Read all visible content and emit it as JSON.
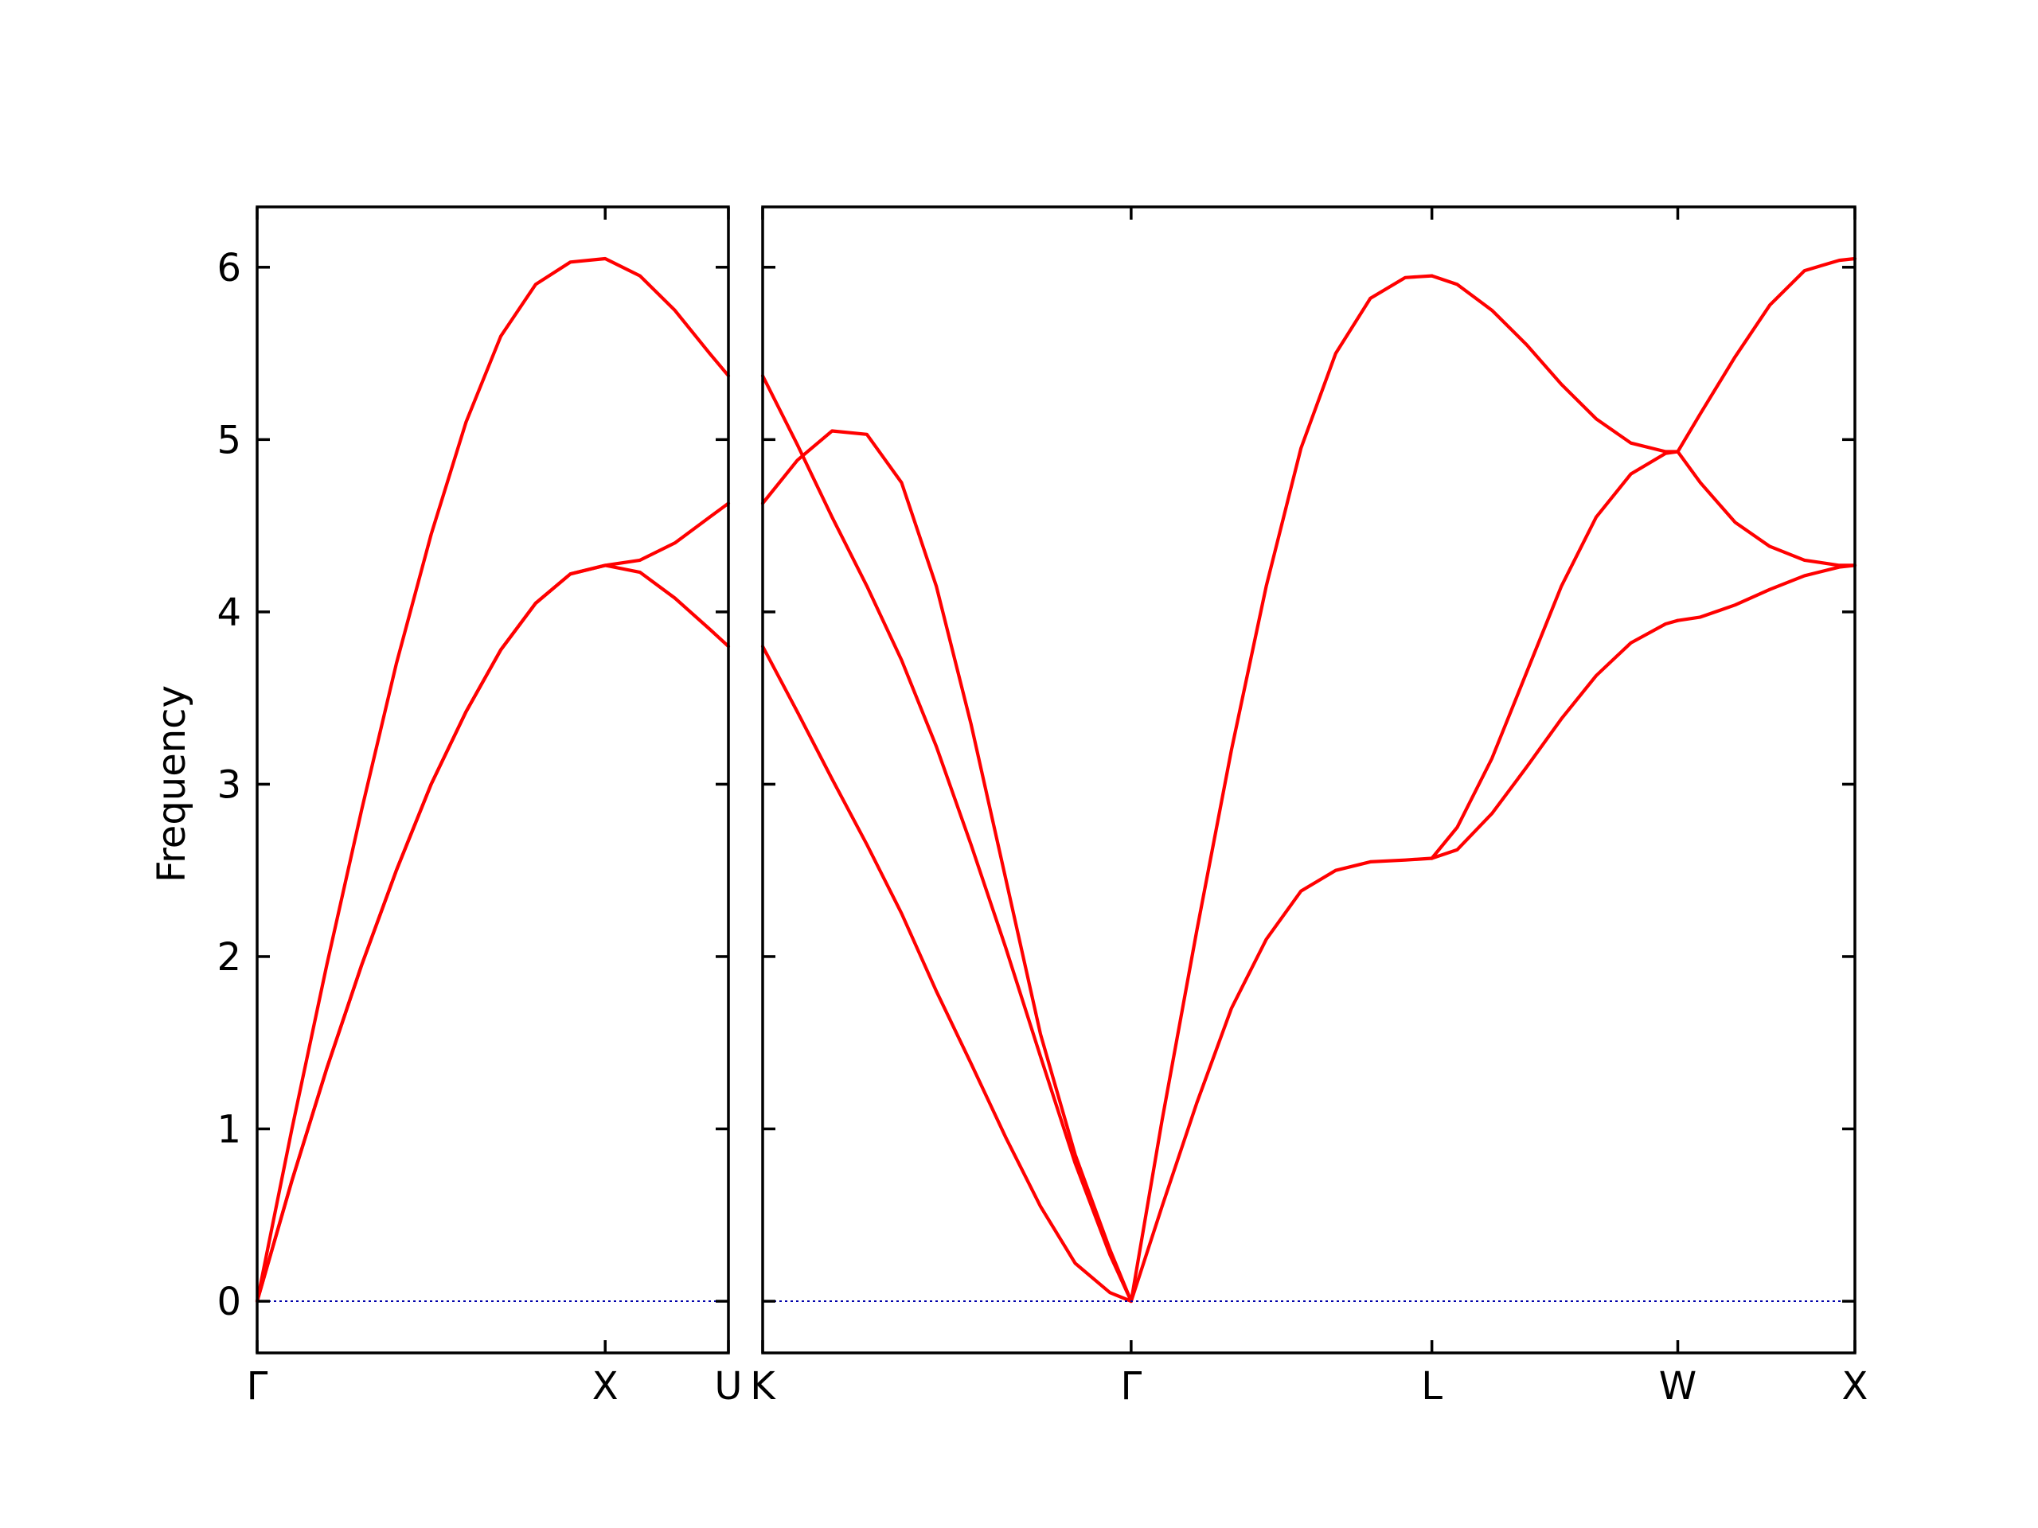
{
  "colors": {
    "band": "#ff0000",
    "zero_line": "#0000aa",
    "frame": "#000000"
  },
  "chart_data": [
    {
      "type": "line",
      "xlabel": "",
      "ylabel": "Frequency",
      "ylim": [
        -0.3,
        6.35
      ],
      "yticks": [
        0,
        1,
        2,
        3,
        4,
        5,
        6
      ],
      "grid": false,
      "xlim": [
        0,
        1.354
      ],
      "xticks": [
        {
          "label": "Γ",
          "value": 0
        },
        {
          "label": "X",
          "value": 1.0
        },
        {
          "label": "U",
          "value": 1.354
        }
      ],
      "series": [
        {
          "x": [
            0,
            0.1,
            0.2,
            0.3,
            0.4,
            0.5,
            0.6,
            0.7,
            0.8,
            0.9,
            1.0,
            1.1,
            1.2,
            1.3,
            1.354
          ],
          "values": [
            0,
            1.0,
            1.95,
            2.85,
            3.7,
            4.45,
            5.1,
            5.6,
            5.9,
            6.03,
            6.05,
            5.95,
            5.75,
            5.5,
            5.37
          ]
        },
        {
          "x": [
            0,
            0.1,
            0.2,
            0.3,
            0.4,
            0.5,
            0.6,
            0.7,
            0.8,
            0.9,
            1.0,
            1.1,
            1.2,
            1.3,
            1.354
          ],
          "values": [
            0,
            0.7,
            1.35,
            1.95,
            2.5,
            3.0,
            3.42,
            3.78,
            4.05,
            4.22,
            4.27,
            4.23,
            4.08,
            3.9,
            3.8
          ]
        },
        {
          "x": [
            0,
            0.1,
            0.2,
            0.3,
            0.4,
            0.5,
            0.6,
            0.7,
            0.8,
            0.9,
            1.0,
            1.1,
            1.2,
            1.3,
            1.354
          ],
          "values": [
            0,
            0.7,
            1.35,
            1.95,
            2.5,
            3.0,
            3.42,
            3.78,
            4.05,
            4.22,
            4.27,
            4.3,
            4.4,
            4.55,
            4.63
          ]
        },
        {
          "x": [
            0,
            1.354
          ],
          "values": [
            0,
            0
          ],
          "style": "zero"
        }
      ]
    },
    {
      "type": "line",
      "xlabel": "",
      "ylabel": "",
      "ylim": [
        -0.3,
        6.35
      ],
      "yticks": [
        0,
        1,
        2,
        3,
        4,
        5,
        6
      ],
      "grid": false,
      "xlim": [
        0,
        3.145
      ],
      "xticks": [
        {
          "label": "K",
          "value": 0
        },
        {
          "label": "Γ",
          "value": 1.061
        },
        {
          "label": "L",
          "value": 1.927
        },
        {
          "label": "W",
          "value": 2.635
        },
        {
          "label": "X",
          "value": 3.145
        }
      ],
      "series": [
        {
          "x": [
            0,
            0.1,
            0.2,
            0.3,
            0.4,
            0.5,
            0.6,
            0.7,
            0.8,
            0.9,
            1.0,
            1.061
          ],
          "values": [
            5.37,
            4.97,
            4.55,
            4.15,
            3.72,
            3.22,
            2.65,
            2.05,
            1.42,
            0.8,
            0.27,
            0
          ]
        },
        {
          "x": [
            0,
            0.1,
            0.2,
            0.3,
            0.4,
            0.5,
            0.6,
            0.7,
            0.8,
            0.9,
            1.0,
            1.061
          ],
          "values": [
            3.8,
            3.42,
            3.03,
            2.65,
            2.25,
            1.8,
            1.38,
            0.95,
            0.55,
            0.22,
            0.05,
            0
          ]
        },
        {
          "x": [
            0,
            0.1,
            0.2,
            0.3,
            0.4,
            0.5,
            0.6,
            0.7,
            0.8,
            0.9,
            1.0,
            1.061
          ],
          "values": [
            4.63,
            4.88,
            5.05,
            5.03,
            4.75,
            4.15,
            3.35,
            2.45,
            1.55,
            0.85,
            0.3,
            0
          ]
        },
        {
          "x": [
            1.061,
            1.15,
            1.25,
            1.35,
            1.45,
            1.55,
            1.65,
            1.75,
            1.85,
            1.927
          ],
          "values": [
            0,
            1.05,
            2.15,
            3.2,
            4.15,
            4.95,
            5.5,
            5.82,
            5.94,
            5.95
          ]
        },
        {
          "x": [
            1.061,
            1.15,
            1.25,
            1.35,
            1.45,
            1.55,
            1.65,
            1.75,
            1.85,
            1.927
          ],
          "values": [
            0,
            0.55,
            1.15,
            1.7,
            2.1,
            2.38,
            2.5,
            2.55,
            2.56,
            2.57
          ]
        },
        {
          "x": [
            1.927,
            2.0,
            2.1,
            2.2,
            2.3,
            2.4,
            2.5,
            2.6,
            2.635
          ],
          "values": [
            5.95,
            5.9,
            5.75,
            5.55,
            5.32,
            5.12,
            4.98,
            4.93,
            4.93
          ]
        },
        {
          "x": [
            1.927,
            2.0,
            2.1,
            2.2,
            2.3,
            2.4,
            2.5,
            2.6,
            2.635
          ],
          "values": [
            2.57,
            2.75,
            3.15,
            3.65,
            4.15,
            4.55,
            4.8,
            4.92,
            4.93
          ]
        },
        {
          "x": [
            1.927,
            2.0,
            2.1,
            2.2,
            2.3,
            2.4,
            2.5,
            2.6,
            2.635
          ],
          "values": [
            2.57,
            2.62,
            2.83,
            3.1,
            3.38,
            3.63,
            3.82,
            3.93,
            3.95
          ]
        },
        {
          "x": [
            2.635,
            2.7,
            2.8,
            2.9,
            3.0,
            3.1,
            3.145
          ],
          "values": [
            4.93,
            5.15,
            5.48,
            5.78,
            5.98,
            6.04,
            6.05
          ]
        },
        {
          "x": [
            2.635,
            2.7,
            2.8,
            2.9,
            3.0,
            3.1,
            3.145
          ],
          "values": [
            4.93,
            4.75,
            4.52,
            4.38,
            4.3,
            4.27,
            4.27
          ]
        },
        {
          "x": [
            2.635,
            2.7,
            2.8,
            2.9,
            3.0,
            3.1,
            3.145
          ],
          "values": [
            3.95,
            3.97,
            4.04,
            4.13,
            4.21,
            4.26,
            4.27
          ]
        },
        {
          "x": [
            0,
            3.145
          ],
          "values": [
            0,
            0
          ],
          "style": "zero"
        }
      ]
    }
  ]
}
